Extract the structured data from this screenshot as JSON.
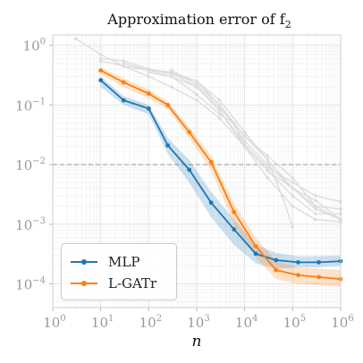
{
  "chart_data": {
    "type": "line",
    "title": "Approximation error of f",
    "title_subscript": "2",
    "xlabel": "n",
    "ylabel": "",
    "x_scale": "log",
    "y_scale": "log",
    "xlim": [
      1,
      1000000
    ],
    "ylim": [
      4e-05,
      1.5
    ],
    "x_ticks": [
      {
        "value": 1,
        "base": "10",
        "exp": "0"
      },
      {
        "value": 10,
        "base": "10",
        "exp": "1"
      },
      {
        "value": 100,
        "base": "10",
        "exp": "2"
      },
      {
        "value": 1000,
        "base": "10",
        "exp": "3"
      },
      {
        "value": 10000,
        "base": "10",
        "exp": "4"
      },
      {
        "value": 100000,
        "base": "10",
        "exp": "5"
      },
      {
        "value": 1000000,
        "base": "10",
        "exp": "6"
      }
    ],
    "y_ticks": [
      {
        "value": 1,
        "base": "10",
        "exp": "0"
      },
      {
        "value": 0.1,
        "base": "10",
        "exp": "−1"
      },
      {
        "value": 0.01,
        "base": "10",
        "exp": "−2"
      },
      {
        "value": 0.001,
        "base": "10",
        "exp": "−3"
      },
      {
        "value": 0.0001,
        "base": "10",
        "exp": "−4"
      }
    ],
    "grid": true,
    "reference_line": {
      "y": 0.01,
      "color": "#aaaaaa",
      "style": "dashed"
    },
    "legend_position": "lower-left",
    "series": [
      {
        "name": "MLP",
        "color": "#1f77b4",
        "x": [
          10,
          30,
          100,
          250,
          700,
          2000,
          6000,
          17000,
          45000,
          130000,
          350000,
          1000000
        ],
        "y": [
          0.26,
          0.12,
          0.087,
          0.021,
          0.0082,
          0.0023,
          0.00082,
          0.00032,
          0.00025,
          0.00023,
          0.00023,
          0.00024
        ],
        "band_low": [
          0.2,
          0.1,
          0.07,
          0.015,
          0.005,
          0.0013,
          0.00045,
          0.00022,
          0.00018,
          0.00019,
          0.00019,
          0.0002
        ],
        "band_high": [
          0.3,
          0.14,
          0.1,
          0.028,
          0.012,
          0.0035,
          0.0012,
          0.00045,
          0.00033,
          0.00029,
          0.00029,
          0.0003
        ]
      },
      {
        "name": "L-GATr",
        "color": "#ff7f0e",
        "x": [
          10,
          30,
          100,
          250,
          700,
          2000,
          6000,
          17000,
          45000,
          130000,
          350000,
          1000000
        ],
        "y": [
          0.38,
          0.24,
          0.155,
          0.1,
          0.035,
          0.011,
          0.0016,
          0.00043,
          0.00017,
          0.00014,
          0.00013,
          0.00012
        ],
        "band_low": [
          0.33,
          0.2,
          0.13,
          0.085,
          0.028,
          0.008,
          0.001,
          0.00028,
          0.00012,
          0.0001,
          9.5e-05,
          9e-05
        ],
        "band_high": [
          0.43,
          0.28,
          0.18,
          0.115,
          0.042,
          0.014,
          0.0022,
          0.0006,
          0.00024,
          0.00019,
          0.00018,
          0.00017
        ]
      }
    ],
    "background_series": [
      {
        "color": "#dddddd",
        "x": [
          3,
          10,
          30,
          100,
          300,
          1000,
          3000,
          10000,
          30000,
          100000,
          300000,
          1000000
        ],
        "y": [
          1.3,
          0.7,
          0.45,
          0.3,
          0.2,
          0.12,
          0.06,
          0.02,
          0.008,
          0.004,
          0.002,
          0.0012
        ]
      },
      {
        "color": "#dddddd",
        "x": [
          10,
          30,
          100,
          300,
          1000,
          3000,
          10000,
          30000,
          100000,
          300000,
          1000000
        ],
        "y": [
          0.55,
          0.45,
          0.38,
          0.36,
          0.25,
          0.12,
          0.035,
          0.012,
          0.004,
          0.0018,
          0.0012
        ]
      },
      {
        "color": "#dddddd",
        "x": [
          10,
          30,
          100,
          300,
          1000,
          3000,
          10000,
          30000,
          100000,
          300000,
          1000000
        ],
        "y": [
          0.6,
          0.55,
          0.4,
          0.35,
          0.2,
          0.08,
          0.02,
          0.006,
          0.002,
          0.0012,
          0.0011
        ]
      },
      {
        "color": "#dddddd",
        "x": [
          30,
          100,
          300,
          1000,
          3000,
          6000,
          10000,
          30000,
          100000,
          300000,
          1000000
        ],
        "y": [
          0.5,
          0.38,
          0.3,
          0.15,
          0.07,
          0.05,
          0.02,
          0.008,
          0.003,
          0.0015,
          0.0015
        ]
      },
      {
        "color": "#dddddd",
        "x": [
          100,
          300,
          1000,
          3000,
          10000,
          30000,
          100000,
          300000,
          1000000
        ],
        "y": [
          0.4,
          0.33,
          0.25,
          0.1,
          0.025,
          0.01,
          0.004,
          0.0025,
          0.0012
        ]
      },
      {
        "color": "#dddddd",
        "x": [
          300,
          1000,
          3000,
          10000,
          30000,
          60000,
          100000
        ],
        "y": [
          0.38,
          0.22,
          0.1,
          0.03,
          0.012,
          0.003,
          0.0009
        ]
      },
      {
        "color": "#dddddd",
        "x": [
          100,
          300,
          1000,
          3000,
          10000,
          30000,
          100000,
          300000,
          1000000
        ],
        "y": [
          0.35,
          0.3,
          0.2,
          0.08,
          0.022,
          0.009,
          0.005,
          0.003,
          0.0024
        ]
      },
      {
        "color": "#dddddd",
        "x": [
          1000,
          3000,
          10000,
          30000,
          100000,
          300000,
          1000000
        ],
        "y": [
          0.2,
          0.09,
          0.03,
          0.014,
          0.006,
          0.002,
          0.0018
        ]
      }
    ]
  }
}
